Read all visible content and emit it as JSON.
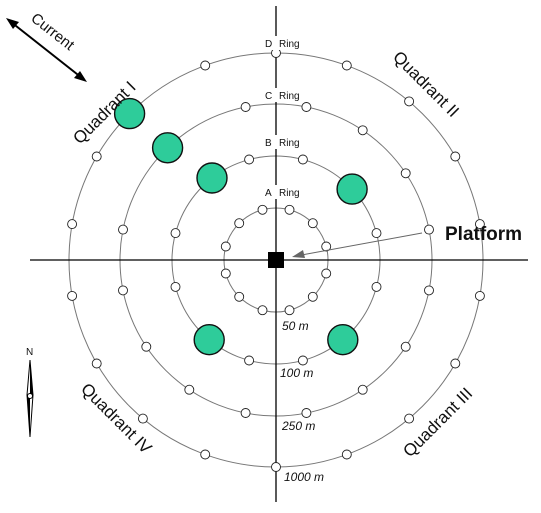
{
  "rings": [
    {
      "name": "A",
      "label": "A",
      "word": "Ring",
      "distance": "50 m"
    },
    {
      "name": "B",
      "label": "B",
      "word": "Ring",
      "distance": "100 m"
    },
    {
      "name": "C",
      "label": "C",
      "word": "Ring",
      "distance": "250 m"
    },
    {
      "name": "D",
      "label": "D",
      "word": "Ring",
      "distance": "1000 m"
    }
  ],
  "quadrants": {
    "q1": "Quadrant I",
    "q2": "Quadrant II",
    "q3": "Quadrant III",
    "q4": "Quadrant IV"
  },
  "platform_label": "Platform",
  "current_label": "Current",
  "compass_label": "N",
  "colors": {
    "highlight_fill": "#2ecc9a",
    "highlight_stroke": "#111111",
    "station_fill": "#ffffff",
    "platform": "#000000",
    "ring_stroke": "#777777",
    "axis_stroke": "#000000"
  },
  "station_counts": {
    "A": 12,
    "B": 12,
    "C": 16,
    "D": 18
  },
  "highlighted_stations": [
    {
      "ring": "D",
      "quadrant": "I"
    },
    {
      "ring": "C",
      "quadrant": "I"
    },
    {
      "ring": "B",
      "quadrant": "I"
    },
    {
      "ring": "B",
      "quadrant": "II"
    },
    {
      "ring": "B",
      "quadrant": "IV"
    },
    {
      "ring": "B",
      "quadrant": "III"
    }
  ]
}
